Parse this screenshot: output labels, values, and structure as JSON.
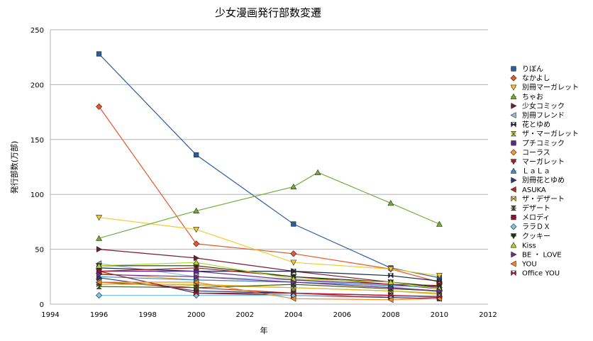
{
  "chart_data": {
    "type": "line",
    "title": "少女漫画発行部数変遷",
    "xlabel": "年",
    "ylabel": "発行部数(万部)",
    "xlim": [
      1994,
      2012
    ],
    "ylim": [
      0,
      250
    ],
    "x_ticks": [
      1994,
      1996,
      1998,
      2000,
      2002,
      2004,
      2006,
      2008,
      2010,
      2012
    ],
    "y_ticks": [
      0,
      50,
      100,
      150,
      200,
      250
    ],
    "grid": "horizontal",
    "legend_position": "right",
    "series": [
      {
        "name": "りぼん",
        "color": "#2b5d9b",
        "marker": "square",
        "points": [
          [
            1996,
            228
          ],
          [
            2000,
            136
          ],
          [
            2004,
            73
          ],
          [
            2008,
            33
          ],
          [
            2010,
            24
          ]
        ]
      },
      {
        "name": "なかよし",
        "color": "#e8562a",
        "marker": "diamond",
        "points": [
          [
            1996,
            180
          ],
          [
            2000,
            55
          ],
          [
            2004,
            46
          ],
          [
            2008,
            32
          ],
          [
            2010,
            20
          ]
        ]
      },
      {
        "name": "別冊マーガレット",
        "color": "#f2cc2e",
        "marker": "triangle-down",
        "points": [
          [
            1996,
            79
          ],
          [
            2000,
            68
          ],
          [
            2004,
            38
          ],
          [
            2008,
            32
          ],
          [
            2010,
            26
          ]
        ]
      },
      {
        "name": "ちゃお",
        "color": "#74ad3a",
        "marker": "triangle-up",
        "points": [
          [
            1996,
            60
          ],
          [
            2000,
            85
          ],
          [
            2004,
            107
          ],
          [
            2005,
            120
          ],
          [
            2008,
            92
          ],
          [
            2010,
            73
          ]
        ]
      },
      {
        "name": "少女コミック",
        "color": "#7a1b33",
        "marker": "triangle-right",
        "points": [
          [
            1996,
            50
          ],
          [
            2000,
            42
          ],
          [
            2004,
            30
          ],
          [
            2008,
            20
          ],
          [
            2010,
            15
          ]
        ]
      },
      {
        "name": "別冊フレンド",
        "color": "#9fb8dc",
        "marker": "triangle-left",
        "points": [
          [
            1996,
            37
          ],
          [
            2000,
            25
          ],
          [
            2004,
            22
          ],
          [
            2008,
            16
          ],
          [
            2010,
            11
          ]
        ]
      },
      {
        "name": "花とゆめ",
        "color": "#1a2a4d",
        "marker": "bowtie",
        "points": [
          [
            1996,
            33
          ],
          [
            2000,
            30
          ],
          [
            2004,
            30
          ],
          [
            2008,
            26
          ],
          [
            2010,
            21
          ]
        ]
      },
      {
        "name": "ザ・マーガレット",
        "color": "#bcbf2c",
        "marker": "hourglass",
        "points": [
          [
            1996,
            20
          ],
          [
            2000,
            17
          ],
          [
            2004,
            15
          ],
          [
            2008,
            12
          ],
          [
            2010,
            9
          ]
        ]
      },
      {
        "name": "プチコミック",
        "color": "#5b2a86",
        "marker": "square",
        "points": [
          [
            1996,
            30
          ],
          [
            2000,
            30
          ],
          [
            2004,
            22
          ],
          [
            2008,
            18
          ],
          [
            2010,
            14
          ]
        ]
      },
      {
        "name": "コーラス",
        "color": "#f59a32",
        "marker": "diamond",
        "points": [
          [
            1996,
            28
          ],
          [
            2000,
            22
          ],
          [
            2004,
            20
          ],
          [
            2008,
            15
          ],
          [
            2010,
            12
          ]
        ]
      },
      {
        "name": "マーガレット",
        "color": "#b21d1d",
        "marker": "triangle-down",
        "points": [
          [
            1996,
            30
          ],
          [
            2000,
            33
          ],
          [
            2004,
            25
          ],
          [
            2008,
            18
          ],
          [
            2010,
            17
          ]
        ]
      },
      {
        "name": "ＬａＬａ",
        "color": "#3f8fc4",
        "marker": "triangle-up",
        "points": [
          [
            1996,
            25
          ],
          [
            2000,
            22
          ],
          [
            2004,
            20
          ],
          [
            2008,
            17
          ],
          [
            2010,
            15
          ]
        ]
      },
      {
        "name": "別冊花とゆめ",
        "color": "#233c7a",
        "marker": "triangle-right",
        "points": [
          [
            1996,
            24
          ],
          [
            2000,
            12
          ],
          [
            2004,
            10
          ],
          [
            2008,
            8
          ],
          [
            2010,
            6
          ]
        ]
      },
      {
        "name": "ASUKA",
        "color": "#a8322b",
        "marker": "triangle-left",
        "points": [
          [
            1996,
            20
          ],
          [
            2000,
            15
          ],
          [
            2004,
            10
          ],
          [
            2008,
            6
          ],
          [
            2010,
            5
          ]
        ]
      },
      {
        "name": "ザ・デザート",
        "color": "#e2b11f",
        "marker": "bowtie",
        "points": [
          [
            1996,
            18
          ],
          [
            2000,
            18
          ],
          [
            2004,
            15
          ],
          [
            2008,
            12
          ],
          [
            2010,
            10
          ]
        ]
      },
      {
        "name": "デザート",
        "color": "#3d5c1c",
        "marker": "hourglass",
        "points": [
          [
            1996,
            16
          ],
          [
            2000,
            15
          ],
          [
            2004,
            18
          ],
          [
            2008,
            14
          ],
          [
            2010,
            12
          ]
        ]
      },
      {
        "name": "メロディ",
        "color": "#8a1730",
        "marker": "square",
        "points": [
          [
            1996,
            30
          ],
          [
            2000,
            10
          ],
          [
            2004,
            8
          ],
          [
            2008,
            6
          ],
          [
            2010,
            5
          ]
        ]
      },
      {
        "name": "ララＤＸ",
        "color": "#7bc3e8",
        "marker": "diamond",
        "points": [
          [
            1996,
            8
          ],
          [
            2000,
            8
          ],
          [
            2004,
            8
          ],
          [
            2008,
            7
          ],
          [
            2010,
            7
          ]
        ]
      },
      {
        "name": "クッキー",
        "color": "#1d3a12",
        "marker": "triangle-down",
        "points": [
          [
            1996,
            35
          ],
          [
            2000,
            35
          ],
          [
            2004,
            25
          ],
          [
            2008,
            20
          ],
          [
            2010,
            16
          ]
        ]
      },
      {
        "name": "Kiss",
        "color": "#b7d12e",
        "marker": "triangle-up",
        "points": [
          [
            1996,
            35
          ],
          [
            2000,
            38
          ],
          [
            2004,
            23
          ],
          [
            2008,
            20
          ],
          [
            2010,
            14
          ]
        ]
      },
      {
        "name": "BE ・ LOVE",
        "color": "#6c2f8e",
        "marker": "triangle-right",
        "points": [
          [
            1996,
            27
          ],
          [
            2000,
            25
          ],
          [
            2004,
            20
          ],
          [
            2008,
            15
          ],
          [
            2010,
            12
          ]
        ]
      },
      {
        "name": "YOU",
        "color": "#f08a24",
        "marker": "triangle-left",
        "points": [
          [
            1996,
            20
          ],
          [
            2000,
            20
          ],
          [
            2004,
            5
          ],
          [
            2008,
            4
          ],
          [
            2010,
            5
          ]
        ]
      },
      {
        "name": "Office YOU",
        "color": "#c8102e",
        "marker": "bowtie",
        "points": [
          [
            2000,
            10
          ],
          [
            2004,
            10
          ],
          [
            2008,
            8
          ],
          [
            2010,
            7
          ]
        ]
      }
    ]
  }
}
